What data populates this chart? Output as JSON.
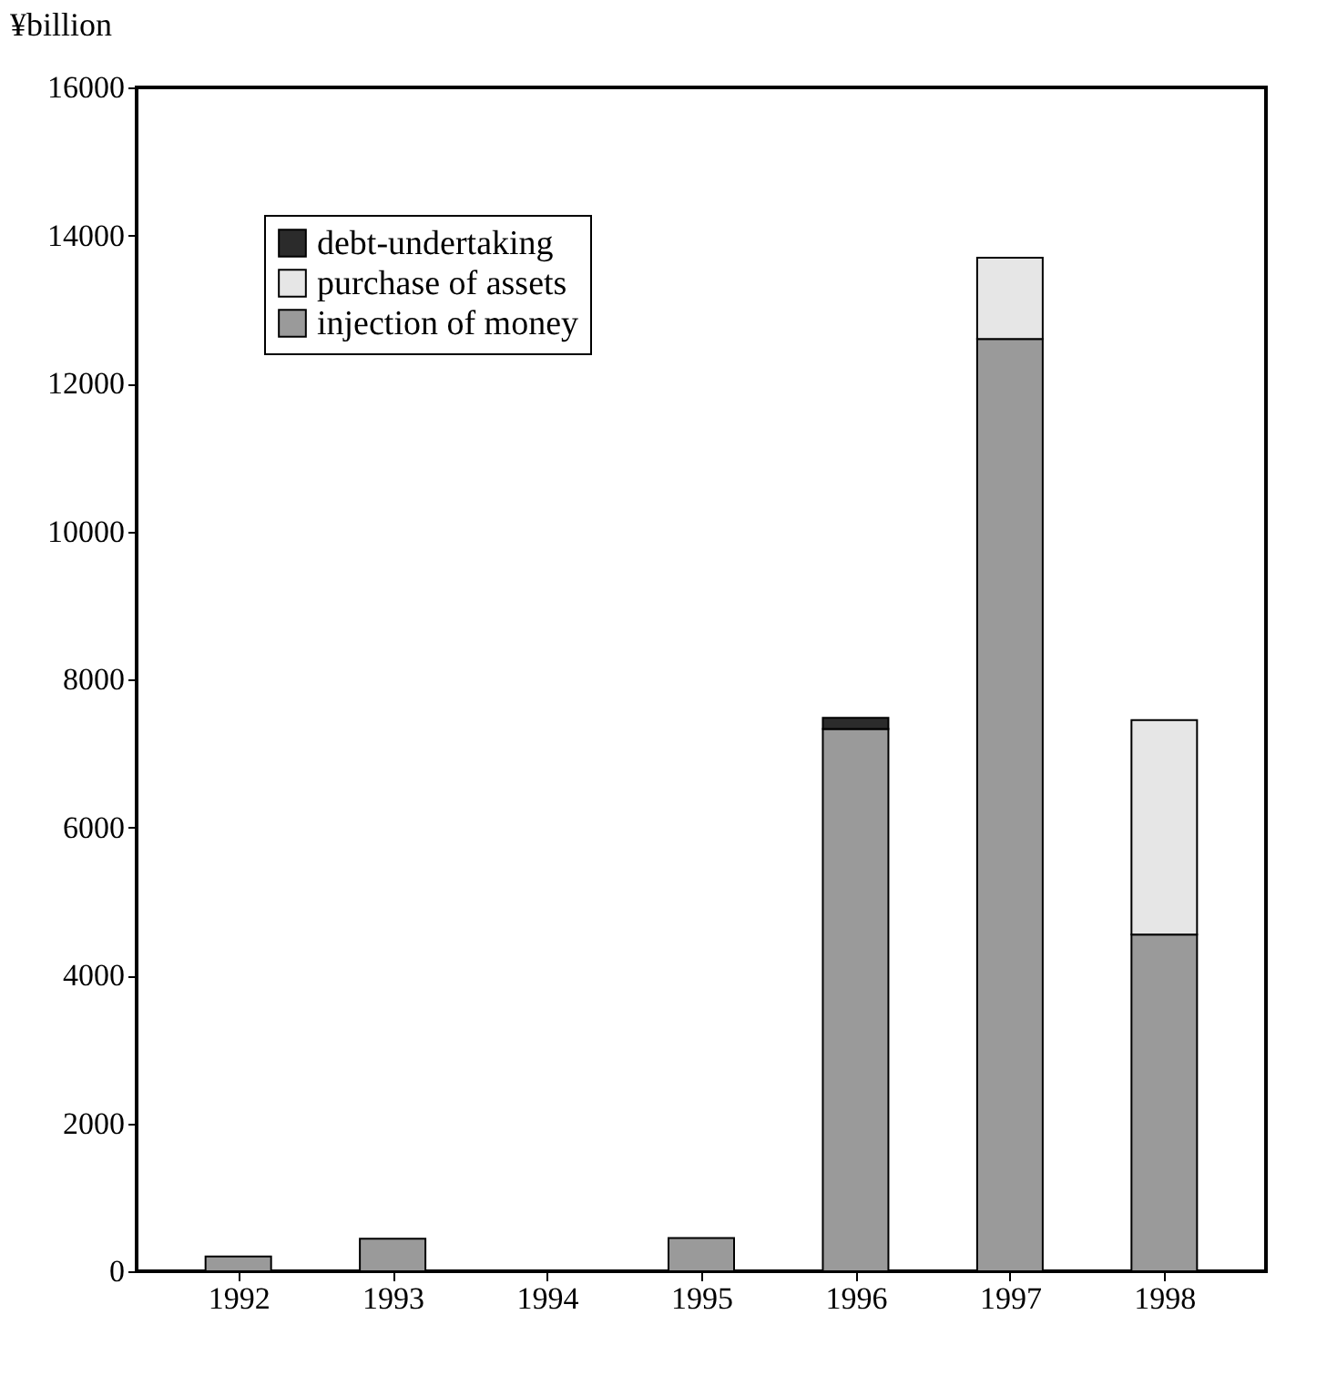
{
  "chart_data": {
    "type": "bar",
    "stacked": true,
    "ylabel": "¥billion",
    "categories": [
      "1992",
      "1993",
      "1994",
      "1995",
      "1996",
      "1997",
      "1998"
    ],
    "series": [
      {
        "name": "injection of money",
        "color": "#9a9a9a",
        "values": [
          200,
          440,
          null,
          450,
          7330,
          12600,
          4550
        ]
      },
      {
        "name": "purchase of assets",
        "color": "#e6e6e6",
        "values": [
          null,
          null,
          null,
          null,
          null,
          1100,
          2900
        ]
      },
      {
        "name": "debt-undertaking",
        "color": "#2b2b2b",
        "values": [
          null,
          null,
          null,
          null,
          150,
          null,
          null
        ]
      }
    ],
    "ylim": [
      0,
      16000
    ],
    "yticks": [
      0,
      2000,
      4000,
      6000,
      8000,
      10000,
      12000,
      14000,
      16000
    ],
    "grid": false,
    "legend": "top left"
  }
}
